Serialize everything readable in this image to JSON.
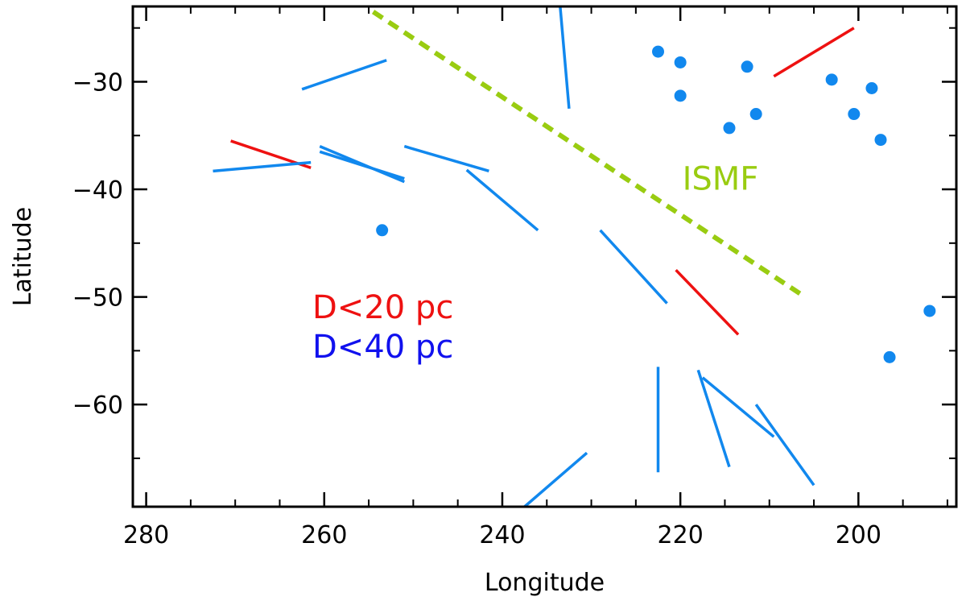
{
  "chart_data": {
    "type": "scatter",
    "title": "",
    "xlabel": "Longitude",
    "ylabel": "Latitude",
    "xlim": [
      281.5,
      189
    ],
    "ylim": [
      -69.5,
      -23
    ],
    "x_ticks": [
      280,
      260,
      240,
      220,
      200
    ],
    "y_ticks": [
      -30,
      -40,
      -50,
      -60
    ],
    "x_tick_labels": [
      "280",
      "260",
      "240",
      "220",
      "200"
    ],
    "y_tick_labels": [
      "−30",
      "−40",
      "−50",
      "−60"
    ],
    "grid": false,
    "colors": {
      "near": "#ee1111",
      "far": "#1188ee",
      "ismf": "#99cc11",
      "axis": "#000000",
      "legend_blue": "#1111ee"
    },
    "legend": [
      {
        "label": "D<20 pc",
        "color": "#ee1111"
      },
      {
        "label": "D<40 pc",
        "color": "#1111ee"
      }
    ],
    "annotation": {
      "text": "ISMF",
      "lon": 215.5,
      "lat": -39.0,
      "color": "#99cc11"
    },
    "ismf_line": {
      "lon1": 254.5,
      "lat1": -23.5,
      "lon2": 206.0,
      "lat2": -50.0
    },
    "series": [
      {
        "name": "D<20 pc",
        "segments": [
          {
            "lon1": 270.5,
            "lat1": -35.5,
            "lon2": 261.5,
            "lat2": -38.0
          },
          {
            "lon1": 209.5,
            "lat1": -29.5,
            "lon2": 200.5,
            "lat2": -25.0
          },
          {
            "lon1": 220.5,
            "lat1": -47.5,
            "lon2": 213.5,
            "lat2": -53.5
          }
        ]
      },
      {
        "name": "D<40 pc",
        "segments": [
          {
            "lon1": 272.5,
            "lat1": -38.3,
            "lon2": 261.5,
            "lat2": -37.5
          },
          {
            "lon1": 262.5,
            "lat1": -30.7,
            "lon2": 253.0,
            "lat2": -28.0
          },
          {
            "lon1": 260.5,
            "lat1": -36.0,
            "lon2": 251.0,
            "lat2": -39.3
          },
          {
            "lon1": 260.5,
            "lat1": -36.5,
            "lon2": 251.0,
            "lat2": -39.0
          },
          {
            "lon1": 251.0,
            "lat1": -36.0,
            "lon2": 241.5,
            "lat2": -38.3
          },
          {
            "lon1": 244.0,
            "lat1": -38.2,
            "lon2": 236.0,
            "lat2": -43.8
          },
          {
            "lon1": 233.5,
            "lat1": -23.0,
            "lon2": 232.5,
            "lat2": -32.5
          },
          {
            "lon1": 229.0,
            "lat1": -43.8,
            "lon2": 221.5,
            "lat2": -50.6
          },
          {
            "lon1": 237.5,
            "lat1": -69.5,
            "lon2": 230.5,
            "lat2": -64.5
          },
          {
            "lon1": 222.5,
            "lat1": -56.5,
            "lon2": 222.5,
            "lat2": -66.3
          },
          {
            "lon1": 218.0,
            "lat1": -56.8,
            "lon2": 214.5,
            "lat2": -65.8
          },
          {
            "lon1": 217.5,
            "lat1": -57.5,
            "lon2": 209.5,
            "lat2": -63.0
          },
          {
            "lon1": 211.5,
            "lat1": -60.0,
            "lon2": 205.0,
            "lat2": -67.5
          }
        ]
      },
      {
        "name": "D<40 pc points",
        "points": [
          {
            "lon": 222.5,
            "lat": -27.2
          },
          {
            "lon": 220.0,
            "lat": -28.2
          },
          {
            "lon": 220.0,
            "lat": -31.3
          },
          {
            "lon": 212.5,
            "lat": -28.6
          },
          {
            "lon": 211.5,
            "lat": -33.0
          },
          {
            "lon": 214.5,
            "lat": -34.3
          },
          {
            "lon": 203.0,
            "lat": -29.8
          },
          {
            "lon": 198.5,
            "lat": -30.6
          },
          {
            "lon": 200.5,
            "lat": -33.0
          },
          {
            "lon": 197.5,
            "lat": -35.4
          },
          {
            "lon": 253.5,
            "lat": -43.8
          },
          {
            "lon": 192.0,
            "lat": -51.3
          },
          {
            "lon": 196.5,
            "lat": -55.6
          }
        ]
      }
    ]
  }
}
